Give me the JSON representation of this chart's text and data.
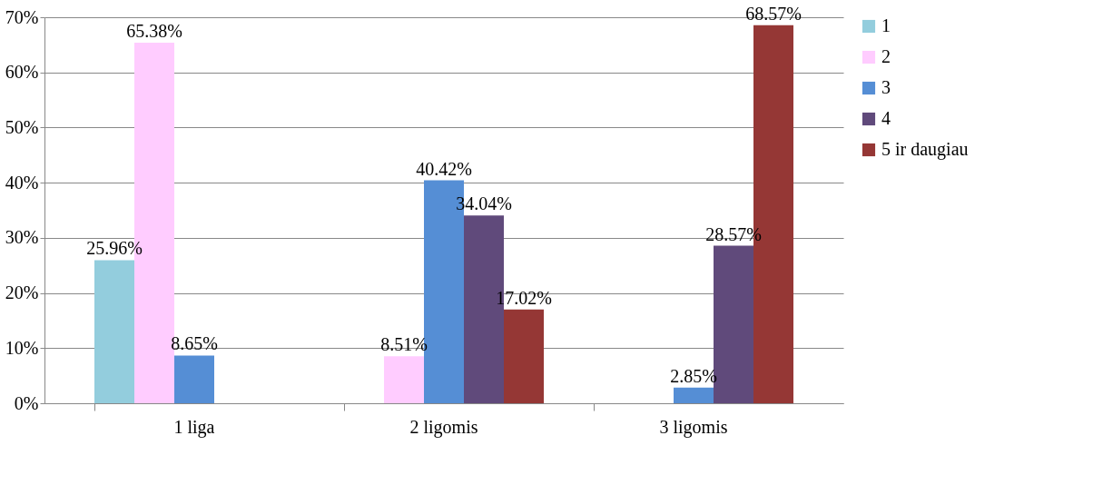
{
  "chart_data": {
    "type": "bar",
    "categories": [
      "1 liga",
      "2 ligomis",
      "3 ligomis"
    ],
    "series": [
      {
        "name": "1",
        "color": "#93cddd",
        "values": [
          25.96,
          null,
          null
        ],
        "value_labels": [
          "25.96%",
          null,
          null
        ]
      },
      {
        "name": "2",
        "color": "#ffccff",
        "values": [
          65.38,
          8.51,
          null
        ],
        "value_labels": [
          "65.38%",
          "8.51%",
          null
        ]
      },
      {
        "name": "3",
        "color": "#558ed5",
        "values": [
          8.65,
          40.42,
          2.85
        ],
        "value_labels": [
          "8.65%",
          "40.42%",
          "2.85%"
        ]
      },
      {
        "name": "4",
        "color": "#604a7b",
        "values": [
          null,
          34.04,
          28.57
        ],
        "value_labels": [
          null,
          "34.04%",
          "28.57%"
        ]
      },
      {
        "name": "5 ir daugiau",
        "color": "#953735",
        "values": [
          null,
          17.02,
          68.57
        ],
        "value_labels": [
          null,
          "17.02%",
          "68.57%"
        ]
      }
    ],
    "ylim": [
      0,
      70
    ],
    "yticks": [
      {
        "value": 0,
        "label": "0%"
      },
      {
        "value": 10,
        "label": "10%"
      },
      {
        "value": 20,
        "label": "20%"
      },
      {
        "value": 30,
        "label": "30%"
      },
      {
        "value": 40,
        "label": "40%"
      },
      {
        "value": 50,
        "label": "50%"
      },
      {
        "value": 60,
        "label": "60%"
      },
      {
        "value": 70,
        "label": "70%"
      }
    ],
    "grid": "y",
    "legend": "right"
  }
}
